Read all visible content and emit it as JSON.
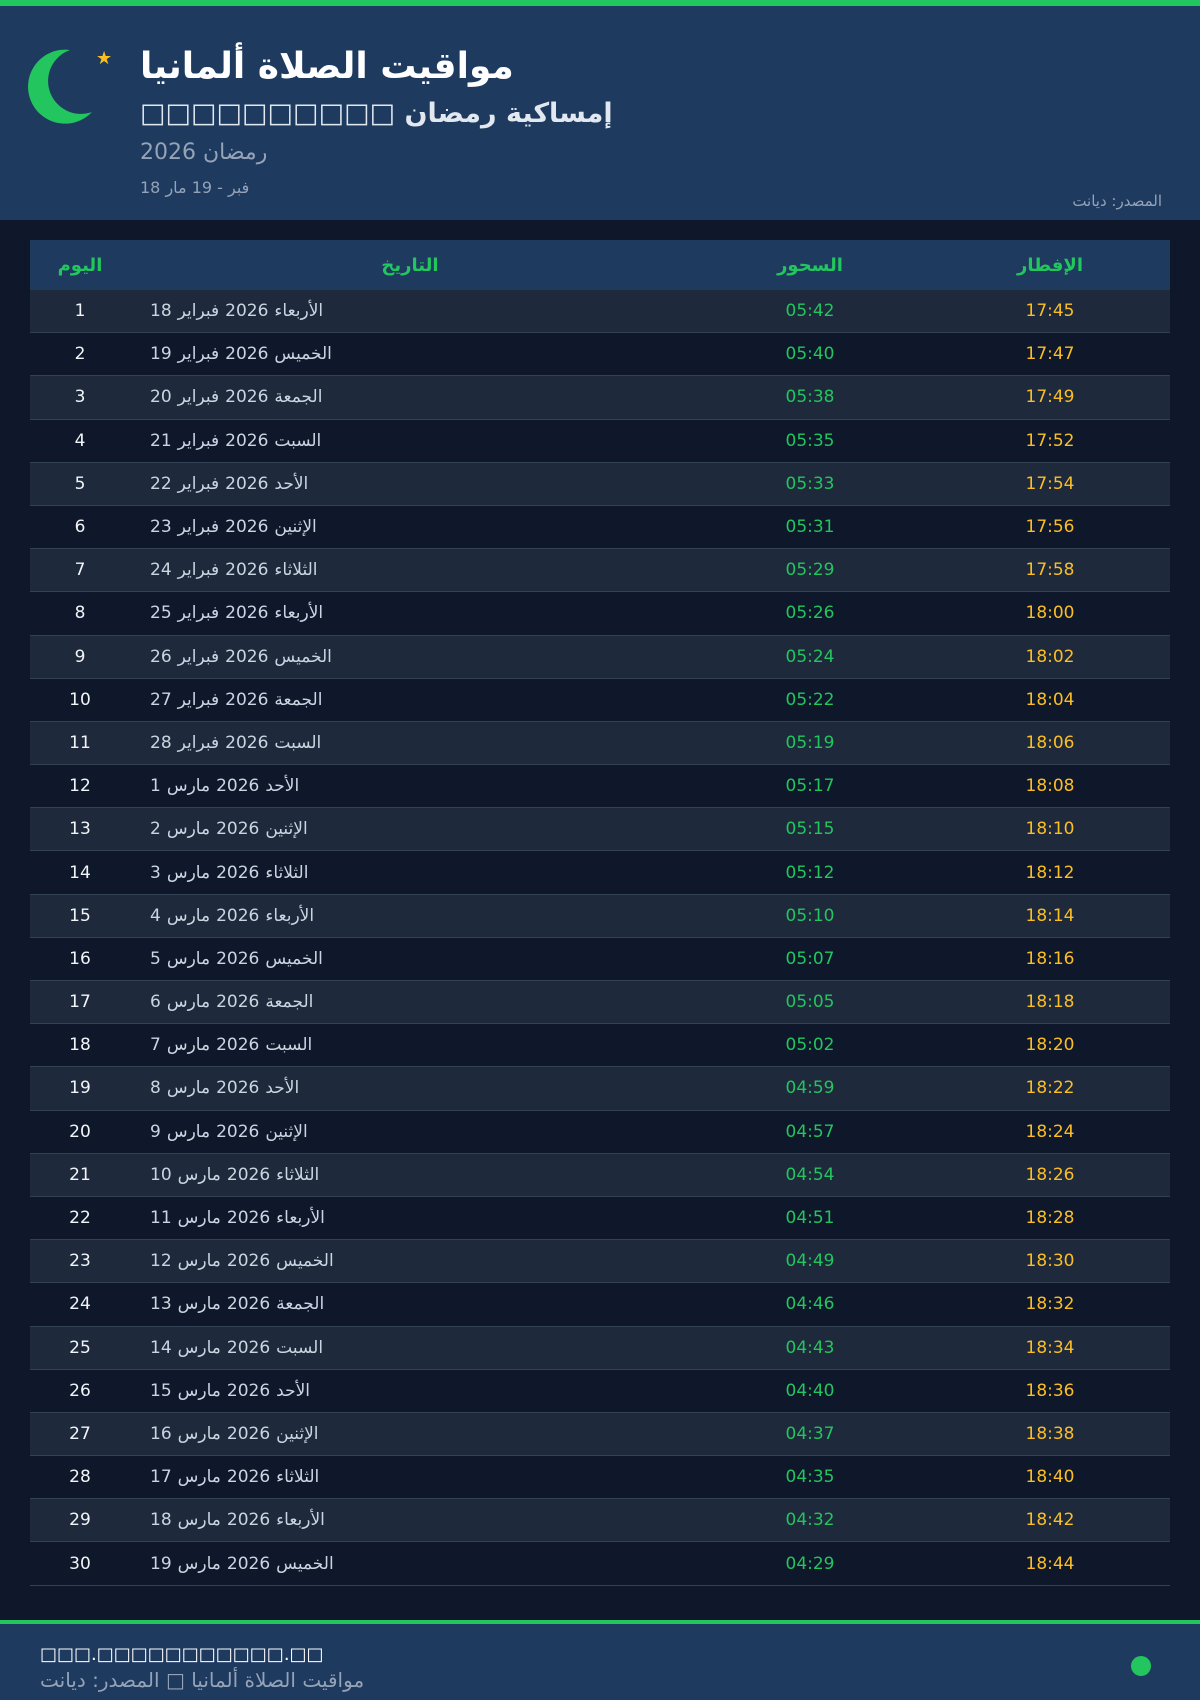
{
  "colors": {
    "accent": "#22c55e",
    "iftar": "#fbbf24",
    "header_bg": "#1e3a5f",
    "bg": "#0f172a"
  },
  "header": {
    "title": "مواقيت الصلاة ألمانيا",
    "subtitle": "□□□□□□□□□□ إمساكية رمضان",
    "year": "رمضان 2026",
    "range": "18 فبر - 19 مار",
    "source": "المصدر: ديانت",
    "icon": "crescent-moon-icon"
  },
  "table": {
    "headers": {
      "day": "اليوم",
      "date": "التاريخ",
      "suhur": "السحور",
      "iftar": "الإفطار"
    },
    "rows": [
      [
        "1",
        "18",
        "فبراير",
        "2026",
        "الأربعاء",
        "05:42",
        "17:45"
      ],
      [
        "2",
        "19",
        "فبراير",
        "2026",
        "الخميس",
        "05:40",
        "17:47"
      ],
      [
        "3",
        "20",
        "فبراير",
        "2026",
        "الجمعة",
        "05:38",
        "17:49"
      ],
      [
        "4",
        "21",
        "فبراير",
        "2026",
        "السبت",
        "05:35",
        "17:52"
      ],
      [
        "5",
        "22",
        "فبراير",
        "2026",
        "الأحد",
        "05:33",
        "17:54"
      ],
      [
        "6",
        "23",
        "فبراير",
        "2026",
        "الإثنين",
        "05:31",
        "17:56"
      ],
      [
        "7",
        "24",
        "فبراير",
        "2026",
        "الثلاثاء",
        "05:29",
        "17:58"
      ],
      [
        "8",
        "25",
        "فبراير",
        "2026",
        "الأربعاء",
        "05:26",
        "18:00"
      ],
      [
        "9",
        "26",
        "فبراير",
        "2026",
        "الخميس",
        "05:24",
        "18:02"
      ],
      [
        "10",
        "27",
        "فبراير",
        "2026",
        "الجمعة",
        "05:22",
        "18:04"
      ],
      [
        "11",
        "28",
        "فبراير",
        "2026",
        "السبت",
        "05:19",
        "18:06"
      ],
      [
        "12",
        "1",
        "مارس",
        "2026",
        "الأحد",
        "05:17",
        "18:08"
      ],
      [
        "13",
        "2",
        "مارس",
        "2026",
        "الإثنين",
        "05:15",
        "18:10"
      ],
      [
        "14",
        "3",
        "مارس",
        "2026",
        "الثلاثاء",
        "05:12",
        "18:12"
      ],
      [
        "15",
        "4",
        "مارس",
        "2026",
        "الأربعاء",
        "05:10",
        "18:14"
      ],
      [
        "16",
        "5",
        "مارس",
        "2026",
        "الخميس",
        "05:07",
        "18:16"
      ],
      [
        "17",
        "6",
        "مارس",
        "2026",
        "الجمعة",
        "05:05",
        "18:18"
      ],
      [
        "18",
        "7",
        "مارس",
        "2026",
        "السبت",
        "05:02",
        "18:20"
      ],
      [
        "19",
        "8",
        "مارس",
        "2026",
        "الأحد",
        "04:59",
        "18:22"
      ],
      [
        "20",
        "9",
        "مارس",
        "2026",
        "الإثنين",
        "04:57",
        "18:24"
      ],
      [
        "21",
        "10",
        "مارس",
        "2026",
        "الثلاثاء",
        "04:54",
        "18:26"
      ],
      [
        "22",
        "11",
        "مارس",
        "2026",
        "الأربعاء",
        "04:51",
        "18:28"
      ],
      [
        "23",
        "12",
        "مارس",
        "2026",
        "الخميس",
        "04:49",
        "18:30"
      ],
      [
        "24",
        "13",
        "مارس",
        "2026",
        "الجمعة",
        "04:46",
        "18:32"
      ],
      [
        "25",
        "14",
        "مارس",
        "2026",
        "السبت",
        "04:43",
        "18:34"
      ],
      [
        "26",
        "15",
        "مارس",
        "2026",
        "الأحد",
        "04:40",
        "18:36"
      ],
      [
        "27",
        "16",
        "مارس",
        "2026",
        "الإثنين",
        "04:37",
        "18:38"
      ],
      [
        "28",
        "17",
        "مارس",
        "2026",
        "الثلاثاء",
        "04:35",
        "18:40"
      ],
      [
        "29",
        "18",
        "مارس",
        "2026",
        "الأربعاء",
        "04:32",
        "18:42"
      ],
      [
        "30",
        "19",
        "مارس",
        "2026",
        "الخميس",
        "04:29",
        "18:44"
      ]
    ]
  },
  "footer": {
    "site": "□□□.□□□□□□□□□□□.□□",
    "line": "مواقيت الصلاة ألمانيا □ المصدر: ديانت"
  }
}
